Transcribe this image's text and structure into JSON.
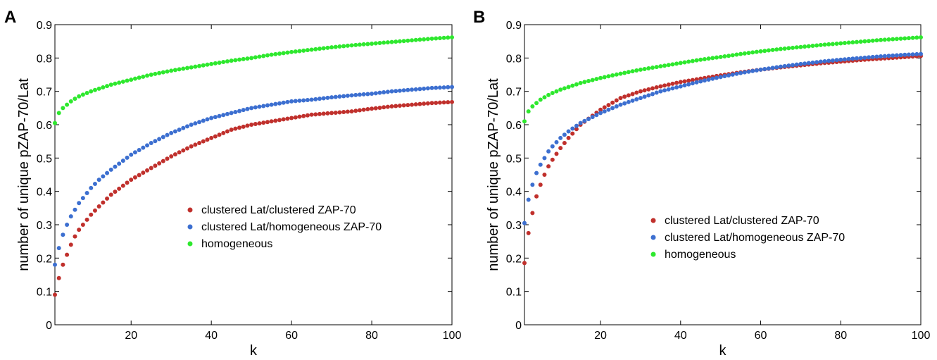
{
  "colors": {
    "clustered_clustered": "#c0302c",
    "clustered_homogeneous": "#3c6fd0",
    "homogeneous": "#2ee82e"
  },
  "chart_data": [
    {
      "type": "scatter",
      "panel_label": "A",
      "xlabel": "k",
      "ylabel": "number of unique pZAP-70/Lat",
      "xlim": [
        1,
        100
      ],
      "ylim": [
        0,
        0.9
      ],
      "xticks": [
        20,
        40,
        60,
        80,
        100
      ],
      "yticks": [
        0,
        0.1,
        0.2,
        0.3,
        0.4,
        0.5,
        0.6,
        0.7,
        0.8,
        0.9
      ],
      "ytick_labels": [
        "0",
        "0.1",
        "0.2",
        "0.3",
        "0.4",
        "0.5",
        "0.6",
        "0.7",
        "0.8",
        "0.9"
      ],
      "grid": false,
      "legend_position": "center-right",
      "series": [
        {
          "name": "clustered Lat/clustered ZAP-70",
          "color_key": "clustered_clustered",
          "x": [
            1,
            2,
            3,
            4,
            5,
            6,
            7,
            8,
            10,
            12,
            15,
            20,
            25,
            30,
            35,
            40,
            45,
            50,
            55,
            60,
            65,
            70,
            75,
            80,
            85,
            90,
            95,
            100
          ],
          "y": [
            0.09,
            0.14,
            0.18,
            0.21,
            0.24,
            0.265,
            0.285,
            0.3,
            0.33,
            0.355,
            0.39,
            0.435,
            0.47,
            0.505,
            0.535,
            0.56,
            0.585,
            0.6,
            0.61,
            0.62,
            0.63,
            0.635,
            0.64,
            0.648,
            0.655,
            0.66,
            0.665,
            0.668
          ]
        },
        {
          "name": "clustered Lat/homogeneous ZAP-70",
          "color_key": "clustered_homogeneous",
          "x": [
            1,
            2,
            3,
            4,
            5,
            6,
            7,
            8,
            10,
            12,
            15,
            20,
            25,
            30,
            35,
            40,
            45,
            50,
            55,
            60,
            65,
            70,
            75,
            80,
            85,
            90,
            95,
            100
          ],
          "y": [
            0.18,
            0.23,
            0.27,
            0.3,
            0.325,
            0.345,
            0.365,
            0.38,
            0.41,
            0.435,
            0.465,
            0.51,
            0.545,
            0.575,
            0.6,
            0.62,
            0.635,
            0.65,
            0.66,
            0.67,
            0.675,
            0.682,
            0.688,
            0.693,
            0.7,
            0.705,
            0.71,
            0.713
          ]
        },
        {
          "name": "homogeneous",
          "color_key": "homogeneous",
          "x": [
            1,
            2,
            3,
            4,
            5,
            6,
            7,
            8,
            10,
            12,
            15,
            20,
            25,
            30,
            35,
            40,
            45,
            50,
            55,
            60,
            65,
            70,
            75,
            80,
            85,
            90,
            95,
            100
          ],
          "y": [
            0.605,
            0.635,
            0.65,
            0.66,
            0.67,
            0.678,
            0.685,
            0.69,
            0.7,
            0.708,
            0.72,
            0.735,
            0.75,
            0.762,
            0.772,
            0.782,
            0.792,
            0.8,
            0.81,
            0.818,
            0.825,
            0.832,
            0.838,
            0.843,
            0.848,
            0.853,
            0.858,
            0.862
          ]
        }
      ]
    },
    {
      "type": "scatter",
      "panel_label": "B",
      "xlabel": "k",
      "ylabel": "number of unique pZAP-70/Lat",
      "xlim": [
        1,
        100
      ],
      "ylim": [
        0,
        0.9
      ],
      "xticks": [
        20,
        40,
        60,
        80,
        100
      ],
      "yticks": [
        0,
        0.1,
        0.2,
        0.3,
        0.4,
        0.5,
        0.6,
        0.7,
        0.8,
        0.9
      ],
      "ytick_labels": [
        "0",
        "0.1",
        "0.2",
        "0.3",
        "0.4",
        "0.5",
        "0.6",
        "0.7",
        "0.8",
        "0.9"
      ],
      "grid": false,
      "legend_position": "center-right",
      "series": [
        {
          "name": "clustered Lat/clustered ZAP-70",
          "color_key": "clustered_clustered",
          "x": [
            1,
            2,
            3,
            4,
            5,
            6,
            7,
            8,
            10,
            12,
            15,
            20,
            25,
            30,
            35,
            40,
            45,
            50,
            55,
            60,
            65,
            70,
            75,
            80,
            85,
            90,
            95,
            100
          ],
          "y": [
            0.185,
            0.275,
            0.335,
            0.385,
            0.42,
            0.45,
            0.475,
            0.495,
            0.53,
            0.56,
            0.6,
            0.645,
            0.68,
            0.7,
            0.715,
            0.728,
            0.738,
            0.748,
            0.757,
            0.765,
            0.772,
            0.778,
            0.784,
            0.789,
            0.794,
            0.798,
            0.802,
            0.806
          ]
        },
        {
          "name": "clustered Lat/homogeneous ZAP-70",
          "color_key": "clustered_homogeneous",
          "x": [
            1,
            2,
            3,
            4,
            5,
            6,
            7,
            8,
            10,
            12,
            15,
            20,
            25,
            30,
            35,
            40,
            45,
            50,
            55,
            60,
            65,
            70,
            75,
            80,
            85,
            90,
            95,
            100
          ],
          "y": [
            0.305,
            0.375,
            0.42,
            0.455,
            0.48,
            0.5,
            0.52,
            0.535,
            0.56,
            0.58,
            0.605,
            0.635,
            0.66,
            0.68,
            0.7,
            0.715,
            0.73,
            0.743,
            0.755,
            0.765,
            0.774,
            0.782,
            0.789,
            0.795,
            0.8,
            0.805,
            0.809,
            0.812
          ]
        },
        {
          "name": "homogeneous",
          "color_key": "homogeneous",
          "x": [
            1,
            2,
            3,
            4,
            5,
            6,
            7,
            8,
            10,
            12,
            15,
            20,
            25,
            30,
            35,
            40,
            45,
            50,
            55,
            60,
            65,
            70,
            75,
            80,
            85,
            90,
            95,
            100
          ],
          "y": [
            0.61,
            0.64,
            0.655,
            0.665,
            0.675,
            0.682,
            0.689,
            0.695,
            0.705,
            0.713,
            0.725,
            0.74,
            0.753,
            0.765,
            0.775,
            0.785,
            0.795,
            0.803,
            0.812,
            0.82,
            0.827,
            0.833,
            0.839,
            0.844,
            0.849,
            0.854,
            0.858,
            0.862
          ]
        }
      ]
    }
  ]
}
